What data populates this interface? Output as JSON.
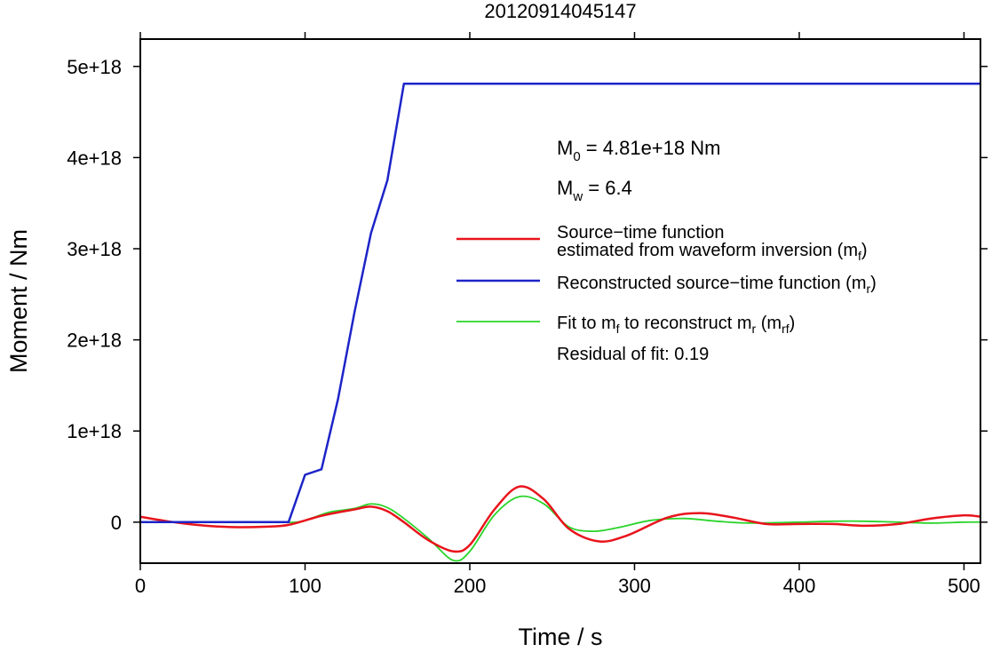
{
  "chart_data": {
    "type": "line",
    "title": "20120914045147",
    "xlabel": "Time / s",
    "ylabel": "Moment / Nm",
    "xlim": [
      0,
      510
    ],
    "ylim": [
      -4.5e+17,
      5.3e+18
    ],
    "grid": false,
    "legend_position": "right",
    "xticks": [
      0,
      100,
      200,
      300,
      400,
      500
    ],
    "xtick_labels": [
      "0",
      "100",
      "200",
      "300",
      "400",
      "500"
    ],
    "yticks": [
      0,
      1e+18,
      2e+18,
      3e+18,
      4e+18,
      5e+18
    ],
    "ytick_labels": [
      "0",
      "1e+18",
      "2e+18",
      "3e+18",
      "4e+18",
      "5e+18"
    ],
    "annotations": {
      "m0": {
        "sym": "M",
        "sub": "0",
        "rest": " = 4.81e+18 Nm"
      },
      "mw": {
        "sym": "M",
        "sub": "w",
        "rest": " = 6.4"
      },
      "residual": "Residual of fit: 0.19"
    },
    "series": [
      {
        "key": "mf",
        "color": "#e8141c",
        "legend": [
          {
            "main": "Source−time function"
          },
          {
            "main": "estimated from waveform inversion (m",
            "sub": "f",
            "after": ")"
          }
        ],
        "x": [
          0,
          20,
          40,
          60,
          75,
          90,
          110,
          130,
          140,
          150,
          160,
          175,
          190,
          200,
          215,
          230,
          245,
          260,
          278,
          295,
          320,
          340,
          360,
          380,
          400,
          420,
          440,
          460,
          480,
          500,
          510
        ],
        "y": [
          6e+16,
          0.0,
          -4e+16,
          -5.5e+16,
          -5e+16,
          -3e+16,
          7e+16,
          1.4e+17,
          1.7e+17,
          1.2e+17,
          0.0,
          -2e+17,
          -3.2e+17,
          -2.5e+17,
          1.4e+17,
          3.9e+17,
          2.5e+17,
          -7e+16,
          -2.1e+17,
          -1.5e+17,
          5e+16,
          1e+17,
          5e+16,
          -2e+16,
          -2e+16,
          -2e+16,
          -4e+16,
          -2e+16,
          4e+16,
          7.5e+16,
          6e+16
        ]
      },
      {
        "key": "mr",
        "color": "#1d24c8",
        "legend": [
          {
            "main": "Reconstructed source−time function (m",
            "sub": "r",
            "after": ")"
          }
        ],
        "x": [
          0,
          20,
          40,
          60,
          80,
          90,
          100,
          110,
          120,
          130,
          140,
          150,
          160,
          180,
          250,
          350,
          450,
          510
        ],
        "y": [
          0,
          0,
          0,
          0,
          0,
          0,
          5.2e+17,
          5.8e+17,
          1.35e+18,
          2.3e+18,
          3.17e+18,
          3.75e+18,
          4.81e+18,
          4.81e+18,
          4.81e+18,
          4.81e+18,
          4.81e+18,
          4.81e+18
        ]
      },
      {
        "key": "mrf",
        "color": "#2ad42a",
        "legend": [
          {
            "main": "Fit to m",
            "sub": "f",
            "after": " to reconstruct m",
            "sub2": "r",
            "after2": " (m",
            "sub3": "rf",
            "after3": ")"
          }
        ],
        "x": [
          0,
          20,
          40,
          60,
          80,
          95,
          105,
          115,
          130,
          140,
          150,
          160,
          175,
          190,
          200,
          215,
          230,
          245,
          260,
          275,
          290,
          310,
          330,
          350,
          370,
          400,
          420,
          440,
          460,
          480,
          500,
          510
        ],
        "y": [
          0,
          0,
          0,
          0,
          0,
          0.0,
          5e+16,
          1.1e+17,
          1.5e+17,
          2e+17,
          1.6e+17,
          4e+16,
          -1.8e+17,
          -4.2e+17,
          -3.2e+17,
          8e+16,
          2.8e+17,
          2e+17,
          -5e+16,
          -1e+17,
          -6e+16,
          2e+16,
          4e+16,
          1e+16,
          -1e+16,
          0.0,
          1e+16,
          1e+16,
          0.0,
          -1e+16,
          0.0,
          0.0
        ]
      }
    ]
  }
}
